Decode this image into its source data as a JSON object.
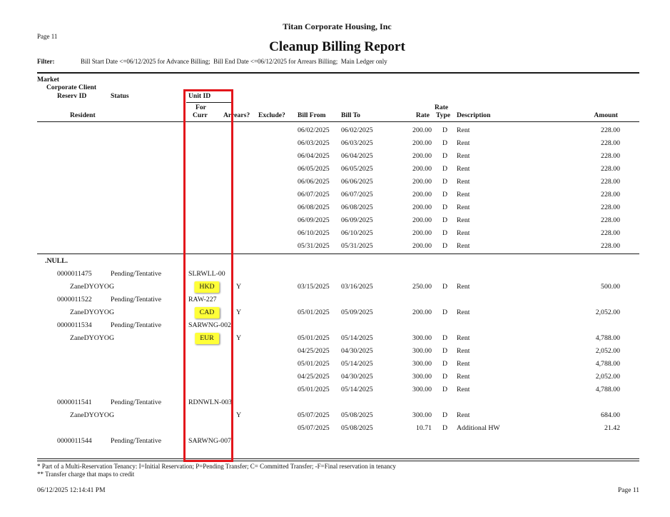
{
  "report": {
    "company": "Titan Corporate Housing, Inc",
    "page_label_top": "Page 11",
    "title": "Cleanup Billing Report",
    "filter_label": "Filter:",
    "filter_text": "Bill Start Date <=06/12/2025 for Advance Billing;  Bill End Date <=06/12/2025 for Arrears Billing;  Main Ledger only"
  },
  "columns": {
    "market": "Market",
    "corporate_client": "Corporate Client",
    "reserv_id": "Reserv ID",
    "status": "Status",
    "unit_id": "Unit ID",
    "resident": "Resident",
    "for_curr_top": "For",
    "for_curr_bottom": "Curr",
    "arrears": "Arrears?",
    "exclude": "Exclude?",
    "bill_from": "Bill From",
    "bill_to": "Bill To",
    "rate": "Rate",
    "rate_type_top": "Rate",
    "rate_type_bottom": "Type",
    "description": "Description",
    "amount": "Amount"
  },
  "body": {
    "continued_lines": [
      {
        "bill_from": "06/02/2025",
        "bill_to": "06/02/2025",
        "rate": "200.00",
        "type": "D",
        "description": "Rent",
        "amount": "228.00"
      },
      {
        "bill_from": "06/03/2025",
        "bill_to": "06/03/2025",
        "rate": "200.00",
        "type": "D",
        "description": "Rent",
        "amount": "228.00"
      },
      {
        "bill_from": "06/04/2025",
        "bill_to": "06/04/2025",
        "rate": "200.00",
        "type": "D",
        "description": "Rent",
        "amount": "228.00"
      },
      {
        "bill_from": "06/05/2025",
        "bill_to": "06/05/2025",
        "rate": "200.00",
        "type": "D",
        "description": "Rent",
        "amount": "228.00"
      },
      {
        "bill_from": "06/06/2025",
        "bill_to": "06/06/2025",
        "rate": "200.00",
        "type": "D",
        "description": "Rent",
        "amount": "228.00"
      },
      {
        "bill_from": "06/07/2025",
        "bill_to": "06/07/2025",
        "rate": "200.00",
        "type": "D",
        "description": "Rent",
        "amount": "228.00"
      },
      {
        "bill_from": "06/08/2025",
        "bill_to": "06/08/2025",
        "rate": "200.00",
        "type": "D",
        "description": "Rent",
        "amount": "228.00"
      },
      {
        "bill_from": "06/09/2025",
        "bill_to": "06/09/2025",
        "rate": "200.00",
        "type": "D",
        "description": "Rent",
        "amount": "228.00"
      },
      {
        "bill_from": "06/10/2025",
        "bill_to": "06/10/2025",
        "rate": "200.00",
        "type": "D",
        "description": "Rent",
        "amount": "228.00"
      },
      {
        "bill_from": "05/31/2025",
        "bill_to": "05/31/2025",
        "rate": "200.00",
        "type": "D",
        "description": "Rent",
        "amount": "228.00"
      }
    ],
    "groups": [
      {
        "market": ".NULL.",
        "reservations": [
          {
            "reserv_id": "0000011475",
            "status": "Pending/Tentative",
            "unit_id": "SLRWLL-00",
            "resident": "ZaneDYOYOG",
            "currency": "HKD",
            "arrears": "Y",
            "lines": [
              {
                "bill_from": "03/15/2025",
                "bill_to": "03/16/2025",
                "rate": "250.00",
                "type": "D",
                "description": "Rent",
                "amount": "500.00"
              }
            ]
          },
          {
            "reserv_id": "0000011522",
            "status": "Pending/Tentative",
            "unit_id": "RAW-227",
            "resident": "ZaneDYOYOG",
            "currency": "CAD",
            "arrears": "Y",
            "lines": [
              {
                "bill_from": "05/01/2025",
                "bill_to": "05/09/2025",
                "rate": "200.00",
                "type": "D",
                "description": "Rent",
                "amount": "2,052.00"
              }
            ]
          },
          {
            "reserv_id": "0000011534",
            "status": "Pending/Tentative",
            "unit_id": "SARWNG-002",
            "resident": "ZaneDYOYOG",
            "currency": "EUR",
            "arrears": "Y",
            "lines": [
              {
                "bill_from": "05/01/2025",
                "bill_to": "05/14/2025",
                "rate": "300.00",
                "type": "D",
                "description": "Rent",
                "amount": "4,788.00"
              },
              {
                "bill_from": "04/25/2025",
                "bill_to": "04/30/2025",
                "rate": "300.00",
                "type": "D",
                "description": "Rent",
                "amount": "2,052.00"
              },
              {
                "bill_from": "05/01/2025",
                "bill_to": "05/14/2025",
                "rate": "300.00",
                "type": "D",
                "description": "Rent",
                "amount": "4,788.00"
              },
              {
                "bill_from": "04/25/2025",
                "bill_to": "04/30/2025",
                "rate": "300.00",
                "type": "D",
                "description": "Rent",
                "amount": "2,052.00"
              },
              {
                "bill_from": "05/01/2025",
                "bill_to": "05/14/2025",
                "rate": "300.00",
                "type": "D",
                "description": "Rent",
                "amount": "4,788.00"
              }
            ]
          },
          {
            "reserv_id": "0000011541",
            "status": "Pending/Tentative",
            "unit_id": "RDNWLN-003",
            "resident": "ZaneDYOYOG",
            "arrears": "Y",
            "lines": [
              {
                "bill_from": "05/07/2025",
                "bill_to": "05/08/2025",
                "rate": "300.00",
                "type": "D",
                "description": "Rent",
                "amount": "684.00"
              },
              {
                "bill_from": "05/07/2025",
                "bill_to": "05/08/2025",
                "rate": "10.71",
                "type": "D",
                "description": "Additional HW",
                "amount": "21.42"
              }
            ]
          },
          {
            "reserv_id": "0000011544",
            "status": "Pending/Tentative",
            "unit_id": "SARWNG-007"
          }
        ]
      }
    ]
  },
  "footnotes": [
    "* Part of a Multi-Reservation Tenancy: I=Initial Reservation; P=Pending Transfer; C= Committed Transfer; -F=Final reservation in tenancy",
    "** Transfer charge that maps to credit"
  ],
  "footer": {
    "printed_at": "06/12/2025 12:14:41 PM",
    "page_label": "Page 11"
  },
  "annotation": {
    "box_color": "#e3161b",
    "currency_highlight_color": "#ffff38"
  }
}
